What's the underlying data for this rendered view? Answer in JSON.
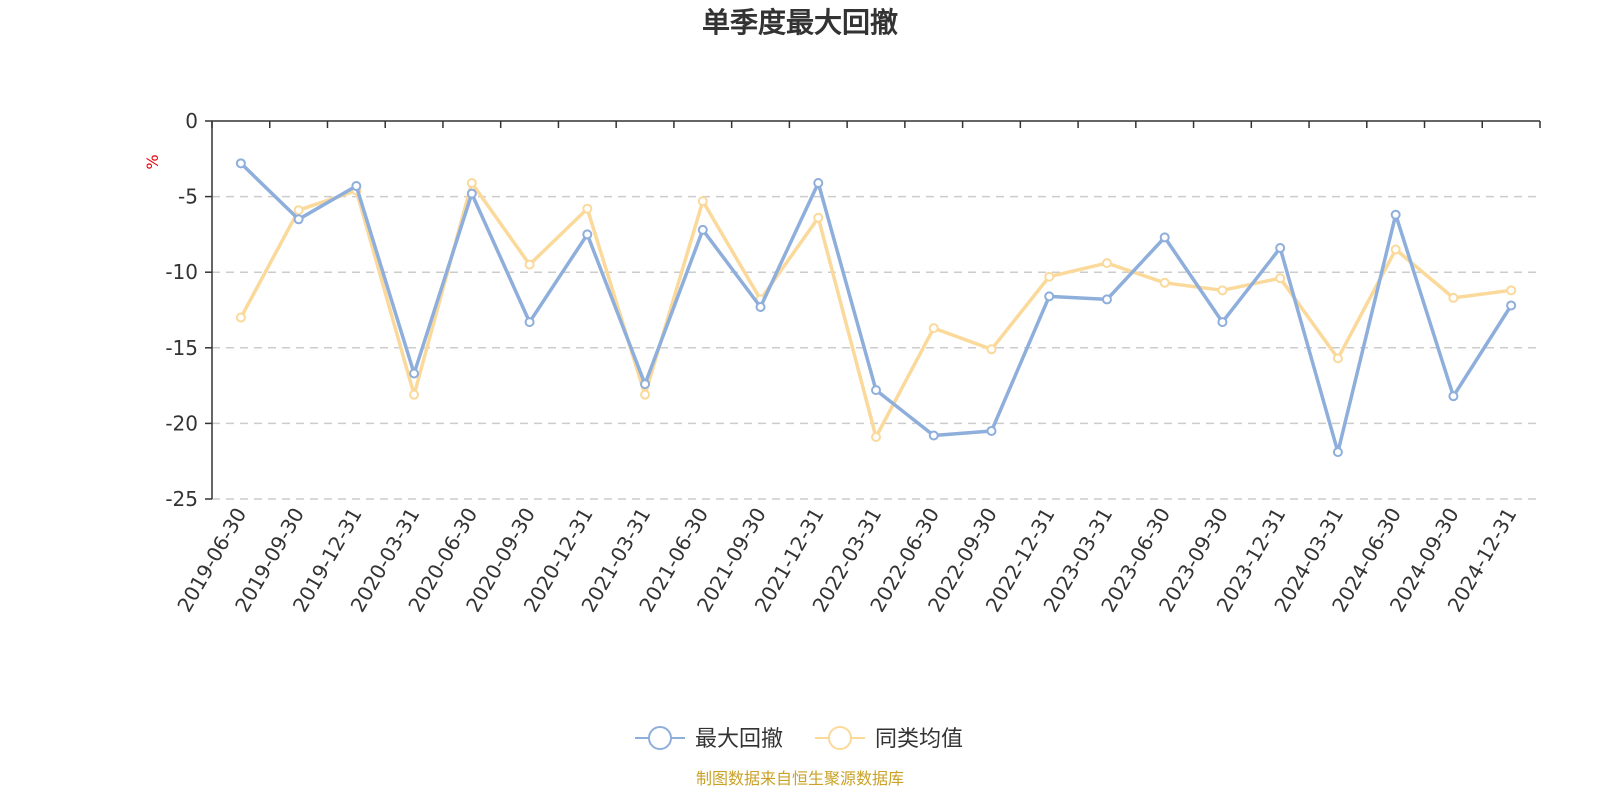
{
  "chart_data": {
    "type": "line",
    "title": "单季度最大回撤",
    "ylabel": "%",
    "ylim": [
      -25,
      0
    ],
    "yticks": [
      0,
      -5,
      -10,
      -15,
      -20,
      -25
    ],
    "grid": true,
    "legend_position": "bottom-center",
    "categories": [
      "2019-06-30",
      "2019-09-30",
      "2019-12-31",
      "2020-03-31",
      "2020-06-30",
      "2020-09-30",
      "2020-12-31",
      "2021-03-31",
      "2021-06-30",
      "2021-09-30",
      "2021-12-31",
      "2022-03-31",
      "2022-06-30",
      "2022-09-30",
      "2022-12-31",
      "2023-03-31",
      "2023-06-30",
      "2023-09-30",
      "2023-12-31",
      "2024-03-31",
      "2024-06-30",
      "2024-09-30",
      "2024-12-31"
    ],
    "series": [
      {
        "name": "最大回撤",
        "color": "#8eaedb",
        "values": [
          -2.8,
          -6.5,
          -4.3,
          -16.7,
          -4.8,
          -13.3,
          -7.5,
          -17.4,
          -7.2,
          -12.3,
          -4.1,
          -17.8,
          -20.8,
          -20.5,
          -11.6,
          -11.8,
          -7.7,
          -13.3,
          -8.4,
          -21.9,
          -6.2,
          -18.2,
          -12.2
        ]
      },
      {
        "name": "同类均值",
        "color": "#fbd99b",
        "values": [
          -13.0,
          -5.9,
          -4.6,
          -18.1,
          -4.1,
          -9.5,
          -5.8,
          -18.1,
          -5.3,
          -11.8,
          -6.4,
          -20.9,
          -13.7,
          -15.1,
          -10.3,
          -9.4,
          -10.7,
          -11.2,
          -10.4,
          -15.7,
          -8.5,
          -11.7,
          -11.2
        ]
      }
    ]
  },
  "footer": {
    "source": "制图数据来自恒生聚源数据库"
  }
}
